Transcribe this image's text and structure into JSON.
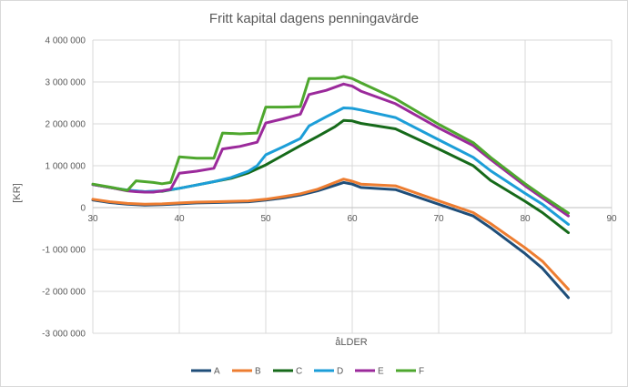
{
  "chart_data": {
    "type": "line",
    "title": "Fritt kapital dagens penningavärde",
    "xlabel": "åLDER",
    "ylabel": "[KR]",
    "xlim": [
      30,
      90
    ],
    "ylim": [
      -3000000,
      4000000
    ],
    "x_ticks": [
      "30",
      "40",
      "50",
      "60",
      "70",
      "80",
      "90"
    ],
    "y_ticks": [
      {
        "value": 4000000,
        "label": "4 000 000"
      },
      {
        "value": 3000000,
        "label": "3 000 000"
      },
      {
        "value": 2000000,
        "label": "2 000 000"
      },
      {
        "value": 1000000,
        "label": "1 000 000"
      },
      {
        "value": 0,
        "label": "0"
      },
      {
        "value": -1000000,
        "label": "-1 000 000"
      },
      {
        "value": -2000000,
        "label": "-2 000 000"
      },
      {
        "value": -3000000,
        "label": "-3 000 000"
      }
    ],
    "grid": true,
    "legend_position": "bottom",
    "series": [
      {
        "name": "A",
        "color": "#1f4e79",
        "points": [
          [
            30,
            180000
          ],
          [
            32,
            120000
          ],
          [
            34,
            80000
          ],
          [
            36,
            60000
          ],
          [
            38,
            70000
          ],
          [
            40,
            90000
          ],
          [
            42,
            110000
          ],
          [
            44,
            120000
          ],
          [
            46,
            130000
          ],
          [
            48,
            140000
          ],
          [
            50,
            180000
          ],
          [
            52,
            230000
          ],
          [
            54,
            300000
          ],
          [
            56,
            400000
          ],
          [
            58,
            530000
          ],
          [
            59,
            600000
          ],
          [
            60,
            560000
          ],
          [
            61,
            480000
          ],
          [
            65,
            430000
          ],
          [
            70,
            80000
          ],
          [
            74,
            -200000
          ],
          [
            76,
            -480000
          ],
          [
            80,
            -1100000
          ],
          [
            82,
            -1450000
          ],
          [
            85,
            -2150000
          ]
        ]
      },
      {
        "name": "B",
        "color": "#ed7d31",
        "points": [
          [
            30,
            200000
          ],
          [
            32,
            140000
          ],
          [
            34,
            100000
          ],
          [
            36,
            80000
          ],
          [
            38,
            90000
          ],
          [
            40,
            110000
          ],
          [
            42,
            130000
          ],
          [
            44,
            140000
          ],
          [
            46,
            150000
          ],
          [
            48,
            160000
          ],
          [
            50,
            200000
          ],
          [
            52,
            260000
          ],
          [
            54,
            330000
          ],
          [
            56,
            440000
          ],
          [
            58,
            600000
          ],
          [
            59,
            680000
          ],
          [
            60,
            630000
          ],
          [
            61,
            560000
          ],
          [
            65,
            520000
          ],
          [
            70,
            160000
          ],
          [
            74,
            -120000
          ],
          [
            76,
            -380000
          ],
          [
            80,
            -960000
          ],
          [
            82,
            -1280000
          ],
          [
            85,
            -1950000
          ]
        ]
      },
      {
        "name": "C",
        "color": "#166a1a",
        "points": [
          [
            30,
            550000
          ],
          [
            32,
            480000
          ],
          [
            34,
            410000
          ],
          [
            36,
            380000
          ],
          [
            38,
            390000
          ],
          [
            40,
            460000
          ],
          [
            42,
            540000
          ],
          [
            44,
            620000
          ],
          [
            46,
            700000
          ],
          [
            48,
            830000
          ],
          [
            50,
            1020000
          ],
          [
            52,
            1250000
          ],
          [
            54,
            1480000
          ],
          [
            56,
            1700000
          ],
          [
            58,
            1930000
          ],
          [
            59,
            2080000
          ],
          [
            60,
            2070000
          ],
          [
            61,
            2010000
          ],
          [
            65,
            1880000
          ],
          [
            70,
            1400000
          ],
          [
            74,
            1000000
          ],
          [
            76,
            650000
          ],
          [
            80,
            150000
          ],
          [
            82,
            -120000
          ],
          [
            85,
            -600000
          ]
        ]
      },
      {
        "name": "D",
        "color": "#1c9ed8",
        "points": [
          [
            30,
            550000
          ],
          [
            32,
            480000
          ],
          [
            34,
            420000
          ],
          [
            36,
            380000
          ],
          [
            38,
            400000
          ],
          [
            40,
            460000
          ],
          [
            42,
            540000
          ],
          [
            44,
            620000
          ],
          [
            46,
            720000
          ],
          [
            48,
            870000
          ],
          [
            49,
            1000000
          ],
          [
            50,
            1260000
          ],
          [
            52,
            1450000
          ],
          [
            54,
            1650000
          ],
          [
            55,
            1950000
          ],
          [
            57,
            2170000
          ],
          [
            59,
            2380000
          ],
          [
            60,
            2370000
          ],
          [
            61,
            2330000
          ],
          [
            65,
            2150000
          ],
          [
            70,
            1620000
          ],
          [
            74,
            1200000
          ],
          [
            76,
            880000
          ],
          [
            80,
            340000
          ],
          [
            82,
            80000
          ],
          [
            85,
            -400000
          ]
        ]
      },
      {
        "name": "E",
        "color": "#9b2a9b",
        "points": [
          [
            30,
            550000
          ],
          [
            32,
            480000
          ],
          [
            34,
            400000
          ],
          [
            35,
            380000
          ],
          [
            36,
            370000
          ],
          [
            37,
            370000
          ],
          [
            38,
            400000
          ],
          [
            39,
            440000
          ],
          [
            40,
            820000
          ],
          [
            42,
            870000
          ],
          [
            44,
            940000
          ],
          [
            45,
            1400000
          ],
          [
            47,
            1460000
          ],
          [
            49,
            1560000
          ],
          [
            50,
            2020000
          ],
          [
            52,
            2120000
          ],
          [
            54,
            2230000
          ],
          [
            55,
            2700000
          ],
          [
            57,
            2800000
          ],
          [
            59,
            2950000
          ],
          [
            60,
            2900000
          ],
          [
            61,
            2780000
          ],
          [
            65,
            2480000
          ],
          [
            70,
            1900000
          ],
          [
            74,
            1480000
          ],
          [
            76,
            1150000
          ],
          [
            80,
            520000
          ],
          [
            82,
            230000
          ],
          [
            85,
            -200000
          ]
        ]
      },
      {
        "name": "F",
        "color": "#4ea72e",
        "points": [
          [
            30,
            560000
          ],
          [
            32,
            490000
          ],
          [
            34,
            410000
          ],
          [
            35,
            640000
          ],
          [
            37,
            600000
          ],
          [
            38,
            570000
          ],
          [
            39,
            600000
          ],
          [
            40,
            1210000
          ],
          [
            42,
            1180000
          ],
          [
            44,
            1180000
          ],
          [
            45,
            1780000
          ],
          [
            47,
            1760000
          ],
          [
            49,
            1780000
          ],
          [
            50,
            2400000
          ],
          [
            52,
            2400000
          ],
          [
            54,
            2410000
          ],
          [
            55,
            3080000
          ],
          [
            57,
            3080000
          ],
          [
            58,
            3080000
          ],
          [
            59,
            3130000
          ],
          [
            60,
            3080000
          ],
          [
            61,
            2980000
          ],
          [
            65,
            2600000
          ],
          [
            70,
            1990000
          ],
          [
            74,
            1550000
          ],
          [
            76,
            1200000
          ],
          [
            80,
            570000
          ],
          [
            82,
            280000
          ],
          [
            85,
            -130000
          ]
        ]
      }
    ]
  }
}
